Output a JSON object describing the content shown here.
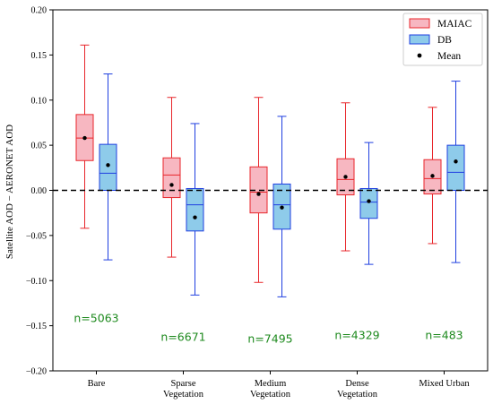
{
  "chart_data": {
    "type": "boxplot",
    "ylabel": "Satellite AOD − AERONET AOD",
    "ylim": [
      -0.2,
      0.2
    ],
    "yticks": [
      -0.2,
      -0.15,
      -0.1,
      -0.05,
      0.0,
      0.05,
      0.1,
      0.15,
      0.2
    ],
    "ytick_labels": [
      "−0.20",
      "−0.15",
      "−0.10",
      "−0.05",
      "0.00",
      "0.05",
      "0.10",
      "0.15",
      "0.20"
    ],
    "reference_line": 0.0,
    "legend_position": "top-right",
    "categories": [
      {
        "name": "Bare",
        "label_lines": [
          "Bare"
        ],
        "n_label": "n=5063",
        "n_y": -0.142
      },
      {
        "name": "Sparse Vegetation",
        "label_lines": [
          "Sparse",
          "Vegetation"
        ],
        "n_label": "n=6671",
        "n_y": -0.163
      },
      {
        "name": "Medium Vegetation",
        "label_lines": [
          "Medium",
          "Vegetation"
        ],
        "n_label": "n=7495",
        "n_y": -0.165
      },
      {
        "name": "Dense Vegetation",
        "label_lines": [
          "Dense",
          "Vegetation"
        ],
        "n_label": "n=4329",
        "n_y": -0.161
      },
      {
        "name": "Mixed Urban",
        "label_lines": [
          "Mixed Urban"
        ],
        "n_label": "n=483",
        "n_y": -0.161
      }
    ],
    "series": [
      {
        "name": "MAIAC",
        "fill": "#f7b7c1",
        "edge": "#e8262b",
        "boxes": [
          {
            "whisker_low": -0.042,
            "q1": 0.033,
            "median": 0.058,
            "q3": 0.084,
            "whisker_high": 0.161,
            "mean": 0.058
          },
          {
            "whisker_low": -0.074,
            "q1": -0.008,
            "median": 0.017,
            "q3": 0.036,
            "whisker_high": 0.103,
            "mean": 0.006
          },
          {
            "whisker_low": -0.102,
            "q1": -0.025,
            "median": -0.002,
            "q3": 0.026,
            "whisker_high": 0.103,
            "mean": -0.004
          },
          {
            "whisker_low": -0.067,
            "q1": -0.005,
            "median": 0.012,
            "q3": 0.035,
            "whisker_high": 0.097,
            "mean": 0.015
          },
          {
            "whisker_low": -0.059,
            "q1": -0.004,
            "median": 0.013,
            "q3": 0.034,
            "whisker_high": 0.092,
            "mean": 0.016
          }
        ]
      },
      {
        "name": "DB",
        "fill": "#8ecbea",
        "edge": "#1f3fe0",
        "boxes": [
          {
            "whisker_low": -0.077,
            "q1": 0.0,
            "median": 0.019,
            "q3": 0.051,
            "whisker_high": 0.129,
            "mean": 0.028
          },
          {
            "whisker_low": -0.116,
            "q1": -0.045,
            "median": -0.016,
            "q3": 0.002,
            "whisker_high": 0.074,
            "mean": -0.03
          },
          {
            "whisker_low": -0.118,
            "q1": -0.043,
            "median": -0.016,
            "q3": 0.007,
            "whisker_high": 0.082,
            "mean": -0.019
          },
          {
            "whisker_low": -0.082,
            "q1": -0.031,
            "median": -0.013,
            "q3": 0.002,
            "whisker_high": 0.053,
            "mean": -0.012
          },
          {
            "whisker_low": -0.08,
            "q1": 0.0,
            "median": 0.02,
            "q3": 0.05,
            "whisker_high": 0.121,
            "mean": 0.032
          }
        ]
      }
    ],
    "legend": [
      {
        "label": "MAIAC",
        "kind": "box",
        "series": 0
      },
      {
        "label": "DB",
        "kind": "box",
        "series": 1
      },
      {
        "label": "Mean",
        "kind": "marker"
      }
    ],
    "mean_marker_color": "#000000"
  }
}
